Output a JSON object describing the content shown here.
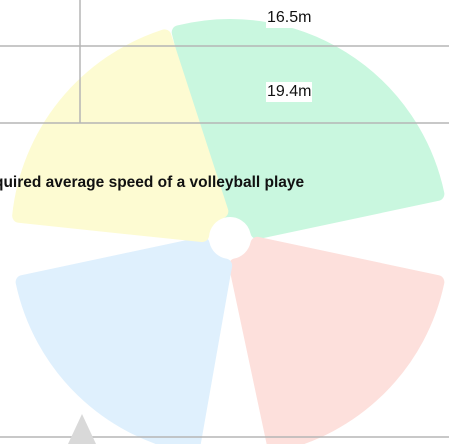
{
  "table": {
    "cells": [
      "16.5m",
      "19.4m"
    ]
  },
  "caption": "quired average speed of a volleyball playe"
}
